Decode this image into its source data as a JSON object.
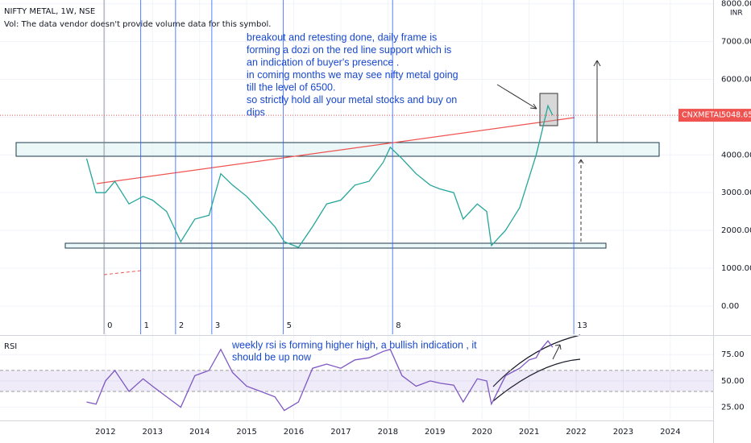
{
  "header": {
    "symbol": "NIFTY METAL, 1W, NSE",
    "volume_note": "Vol: The data vendor doesn't provide volume data for this symbol.",
    "currency": "INR"
  },
  "chart_data": [
    {
      "type": "line",
      "color": "#26a69a",
      "x": [
        2011.6,
        2011.8,
        2012.0,
        2012.2,
        2012.5,
        2012.8,
        2013.0,
        2013.3,
        2013.6,
        2013.9,
        2014.2,
        2014.45,
        2014.7,
        2015.0,
        2015.3,
        2015.6,
        2015.8,
        2016.1,
        2016.4,
        2016.7,
        2017.0,
        2017.3,
        2017.6,
        2017.9,
        2018.05,
        2018.3,
        2018.6,
        2018.9,
        2019.1,
        2019.4,
        2019.6,
        2019.9,
        2020.1,
        2020.2,
        2020.5,
        2020.8,
        2021.0,
        2021.15,
        2021.25,
        2021.4,
        2021.5
      ],
      "values": [
        3900,
        3000,
        3000,
        3300,
        2700,
        2900,
        2800,
        2500,
        1700,
        2300,
        2400,
        3500,
        3200,
        2900,
        2500,
        2100,
        1700,
        1550,
        2100,
        2700,
        2800,
        3200,
        3300,
        3800,
        4200,
        3900,
        3500,
        3200,
        3100,
        3000,
        2300,
        2700,
        2500,
        1600,
        2000,
        2600,
        3400,
        4000,
        4500,
        5300,
        5050
      ],
      "xlim": [
        2009.76,
        2024.91
      ],
      "ylim": [
        -750,
        8100
      ],
      "xticks": [
        2012,
        2013,
        2014,
        2015,
        2016,
        2017,
        2018,
        2019,
        2020,
        2021,
        2022,
        2023,
        2024
      ],
      "yticks": [
        {
          "value": 0,
          "label": "0.00"
        },
        {
          "value": 1000,
          "label": "1000.00"
        },
        {
          "value": 2000,
          "label": "2000.00"
        },
        {
          "value": 3000,
          "label": "3000.00"
        },
        {
          "value": 4000,
          "label": "4000.00"
        },
        {
          "value": 5000,
          "label": "5000.00"
        },
        {
          "value": 6000,
          "label": "6000.00"
        },
        {
          "value": 7000,
          "label": "7000.00"
        },
        {
          "value": 8000,
          "label": "8000.00"
        }
      ],
      "last_price": {
        "name": "CNXMETAL",
        "value": 5048.65
      },
      "fib_zones": [
        {
          "x": 2011.97,
          "label": "0"
        },
        {
          "x": 2012.75,
          "label": "1"
        },
        {
          "x": 2013.49,
          "label": "2"
        },
        {
          "x": 2014.26,
          "label": "3"
        },
        {
          "x": 2015.78,
          "label": "5"
        },
        {
          "x": 2018.1,
          "label": "8"
        },
        {
          "x": 2021.95,
          "label": "13"
        }
      ],
      "annotation": [
        "breakout and retesting done, daily frame is",
        "forming a dozi on the red line support which is",
        "an indication of buyer's presence .",
        "in coming months we may see nifty metal going",
        "till the level of 6500.",
        "so strictly  hold all your metal stocks and buy on",
        "dips"
      ]
    },
    {
      "type": "line",
      "title": "RSI",
      "color": "#7e57c2",
      "x": [
        2011.6,
        2011.8,
        2012.0,
        2012.2,
        2012.5,
        2012.8,
        2013.0,
        2013.3,
        2013.6,
        2013.9,
        2014.2,
        2014.45,
        2014.7,
        2015.0,
        2015.3,
        2015.6,
        2015.8,
        2016.1,
        2016.4,
        2016.7,
        2017.0,
        2017.3,
        2017.6,
        2017.9,
        2018.05,
        2018.3,
        2018.6,
        2018.9,
        2019.1,
        2019.4,
        2019.6,
        2019.9,
        2020.1,
        2020.2,
        2020.5,
        2020.8,
        2021.0,
        2021.15,
        2021.25,
        2021.4,
        2021.5
      ],
      "values": [
        30,
        28,
        50,
        60,
        40,
        52,
        45,
        35,
        25,
        55,
        60,
        80,
        58,
        45,
        40,
        35,
        22,
        30,
        62,
        66,
        62,
        70,
        72,
        78,
        80,
        55,
        45,
        50,
        48,
        46,
        30,
        52,
        50,
        28,
        55,
        62,
        70,
        72,
        80,
        88,
        82
      ],
      "ylim": [
        12.5,
        92
      ],
      "yticks": [
        {
          "value": 25,
          "label": "25.00"
        },
        {
          "value": 50,
          "label": "50.00"
        },
        {
          "value": 75,
          "label": "75.00"
        }
      ],
      "band": [
        40,
        60
      ],
      "annotation": [
        "weekly rsi is forming higher high, a bullish indication , it",
        "should be up now"
      ]
    }
  ]
}
